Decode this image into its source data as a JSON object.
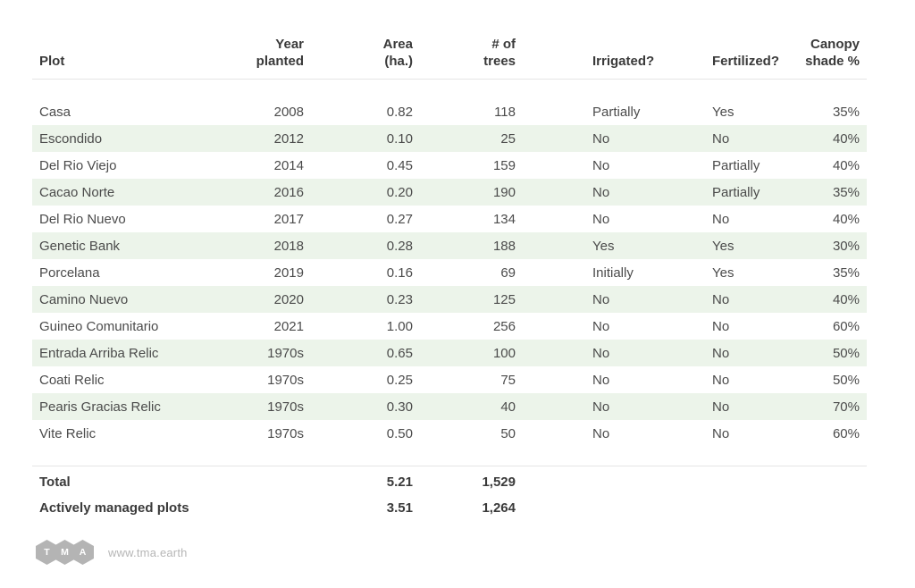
{
  "table": {
    "columns": [
      {
        "label": "Plot",
        "align": "left"
      },
      {
        "label": "Year\nplanted",
        "align": "right"
      },
      {
        "label": "Area\n(ha.)",
        "align": "right"
      },
      {
        "label": "# of\ntrees",
        "align": "right"
      },
      {
        "label": "Irrigated?",
        "align": "left"
      },
      {
        "label": "Fertilized?",
        "align": "left"
      },
      {
        "label": "Canopy\nshade %",
        "align": "right"
      }
    ],
    "rows": [
      [
        "Casa",
        "2008",
        "0.82",
        "118",
        "Partially",
        "Yes",
        "35%"
      ],
      [
        "Escondido",
        "2012",
        "0.10",
        "25",
        "No",
        "No",
        "40%"
      ],
      [
        "Del Rio Viejo",
        "2014",
        "0.45",
        "159",
        "No",
        "Partially",
        "40%"
      ],
      [
        "Cacao Norte",
        "2016",
        "0.20",
        "190",
        "No",
        "Partially",
        "35%"
      ],
      [
        "Del Rio Nuevo",
        "2017",
        "0.27",
        "134",
        "No",
        "No",
        "40%"
      ],
      [
        "Genetic Bank",
        "2018",
        "0.28",
        "188",
        "Yes",
        "Yes",
        "30%"
      ],
      [
        "Porcelana",
        "2019",
        "0.16",
        "69",
        "Initially",
        "Yes",
        "35%"
      ],
      [
        "Camino Nuevo",
        "2020",
        "0.23",
        "125",
        "No",
        "No",
        "40%"
      ],
      [
        "Guineo Comunitario",
        "2021",
        "1.00",
        "256",
        "No",
        "No",
        "60%"
      ],
      [
        "Entrada Arriba Relic",
        "1970s",
        "0.65",
        "100",
        "No",
        "No",
        "50%"
      ],
      [
        "Coati Relic",
        "1970s",
        "0.25",
        "75",
        "No",
        "No",
        "50%"
      ],
      [
        "Pearis Gracias Relic",
        "1970s",
        "0.30",
        "40",
        "No",
        "No",
        "70%"
      ],
      [
        "Vite Relic",
        "1970s",
        "0.50",
        "50",
        "No",
        "No",
        "60%"
      ]
    ],
    "totals": [
      {
        "label": "Total",
        "area": "5.21",
        "trees": "1,529"
      },
      {
        "label": "Actively managed plots",
        "area": "3.51",
        "trees": "1,264"
      }
    ]
  },
  "footer": {
    "logo_letters": [
      "T",
      "M",
      "A"
    ],
    "url": "www.tma.earth"
  },
  "colors": {
    "stripe": "#ecf4ea",
    "divider": "#e5e5e5",
    "header_text": "#3a3a3a",
    "body_text": "#4b4b4b",
    "logo_gray": "#b4b4b4",
    "footer_text": "#b6b6b6"
  }
}
